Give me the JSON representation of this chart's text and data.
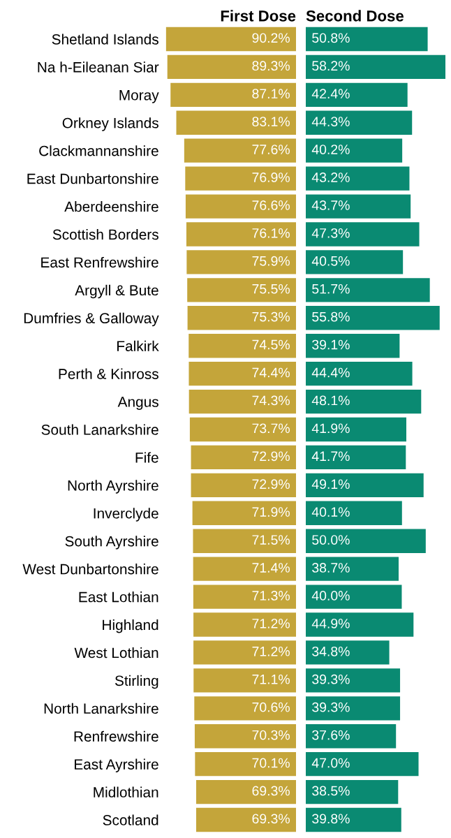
{
  "chart_data": [
    {
      "type": "bar",
      "orientation": "horizontal",
      "title": "First Dose",
      "categories": [
        "Shetland Islands",
        "Na h-Eileanan Siar",
        "Moray",
        "Orkney Islands",
        "Clackmannanshire",
        "East Dunbartonshire",
        "Aberdeenshire",
        "Scottish Borders",
        "East Renfrewshire",
        "Argyll & Bute",
        "Dumfries & Galloway",
        "Falkirk",
        "Perth & Kinross",
        "Angus",
        "South Lanarkshire",
        "Fife",
        "North Ayrshire",
        "Inverclyde",
        "South Ayrshire",
        "West Dunbartonshire",
        "East Lothian",
        "Highland",
        "West Lothian",
        "Stirling",
        "North Lanarkshire",
        "Renfrewshire",
        "East Ayrshire",
        "Midlothian",
        "Scotland"
      ],
      "values": [
        90.2,
        89.3,
        87.1,
        83.1,
        77.6,
        76.9,
        76.6,
        76.1,
        75.9,
        75.5,
        75.3,
        74.5,
        74.4,
        74.3,
        73.7,
        72.9,
        72.9,
        71.9,
        71.5,
        71.4,
        71.3,
        71.2,
        71.2,
        71.1,
        70.6,
        70.3,
        70.1,
        69.3,
        69.3
      ],
      "value_labels": [
        "90.2%",
        "89.3%",
        "87.1%",
        "83.1%",
        "77.6%",
        "76.9%",
        "76.6%",
        "76.1%",
        "75.9%",
        "75.5%",
        "75.3%",
        "74.5%",
        "74.4%",
        "74.3%",
        "73.7%",
        "72.9%",
        "72.9%",
        "71.9%",
        "71.5%",
        "71.4%",
        "71.3%",
        "71.2%",
        "71.2%",
        "71.1%",
        "70.6%",
        "70.3%",
        "70.1%",
        "69.3%",
        "69.3%"
      ],
      "color": "#c4a53a",
      "tick_labels": "y",
      "grid": false,
      "legend": false
    },
    {
      "type": "bar",
      "orientation": "horizontal",
      "title": "Second Dose",
      "categories": [
        null,
        null,
        null,
        null,
        null,
        null,
        null,
        null,
        null,
        null,
        null,
        null,
        null,
        null,
        null,
        null,
        null,
        null,
        null,
        null,
        null,
        null,
        null,
        null,
        null,
        null,
        null,
        null,
        null
      ],
      "values": [
        50.8,
        58.2,
        42.4,
        44.3,
        40.2,
        43.2,
        43.7,
        47.3,
        40.5,
        51.7,
        55.8,
        39.1,
        44.4,
        48.1,
        41.9,
        41.7,
        49.1,
        40.1,
        50.0,
        38.7,
        40.0,
        44.9,
        34.8,
        39.3,
        39.3,
        37.6,
        47.0,
        38.5,
        39.8
      ],
      "value_labels": [
        "50.8%",
        "58.2%",
        "42.4%",
        "44.3%",
        "40.2%",
        "43.2%",
        "43.7%",
        "47.3%",
        "40.5%",
        "51.7%",
        "55.8%",
        "39.1%",
        "44.4%",
        "48.1%",
        "41.9%",
        "41.7%",
        "49.1%",
        "40.1%",
        "50.0%",
        "38.7%",
        "40.0%",
        "44.9%",
        "34.8%",
        "39.3%",
        "39.3%",
        "37.6%",
        "47.0%",
        "38.5%",
        "39.8%"
      ],
      "color": "#0a8a72",
      "tick_labels": false,
      "grid": false,
      "legend": false
    }
  ]
}
